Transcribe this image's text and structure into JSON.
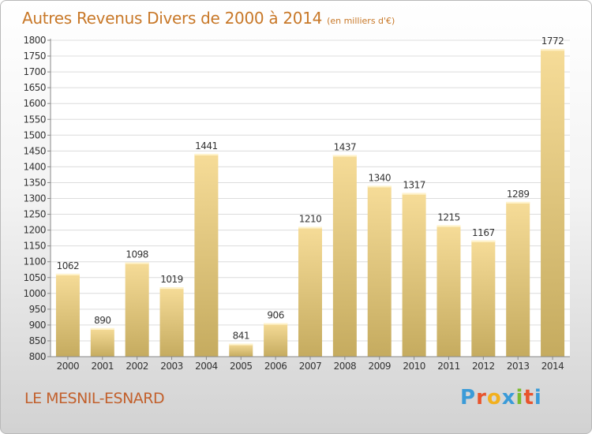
{
  "title": "Autres Revenus Divers de 2000 à 2014",
  "subtitle": "(en milliers d'€)",
  "commune": "LE MESNIL-ESNARD",
  "logo": {
    "letters": [
      "P",
      "r",
      "o",
      "x",
      "i",
      "t",
      "i"
    ],
    "colors": [
      "#3a9bd8",
      "#e8542c",
      "#f2b01e",
      "#3a9bd8",
      "#7cbb2e",
      "#e8542c",
      "#3a9bd8"
    ]
  },
  "chart_data": {
    "type": "bar",
    "categories": [
      "2000",
      "2001",
      "2002",
      "2003",
      "2004",
      "2005",
      "2006",
      "2007",
      "2008",
      "2009",
      "2010",
      "2011",
      "2012",
      "2013",
      "2014"
    ],
    "values": [
      1062,
      890,
      1098,
      1019,
      1441,
      841,
      906,
      1210,
      1437,
      1340,
      1317,
      1215,
      1167,
      1289,
      1772
    ],
    "ylim": [
      800,
      1800
    ],
    "ytick_step": 50,
    "grid": true,
    "bar_color_top": "#f6dc98",
    "bar_color_bottom": "#c5ab5f"
  }
}
